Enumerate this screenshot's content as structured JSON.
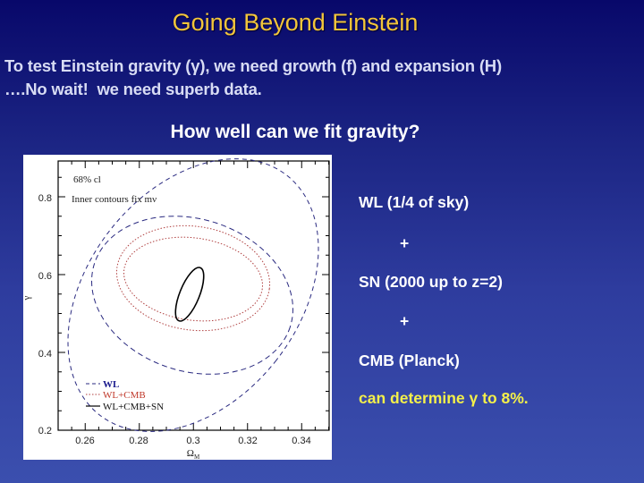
{
  "slide": {
    "title": "Going Beyond Einstein",
    "intro_lines": [
      "To test Einstein gravity (γ), we need growth (f) and expansion (H)",
      "….No wait!  we need superb data."
    ],
    "subtitle": "How well can we fit gravity?",
    "right_list": [
      {
        "text": "WL (1/4 of sky)",
        "kind": "item"
      },
      {
        "text": "+",
        "kind": "plus"
      },
      {
        "text": "SN (2000 up to z=2)",
        "kind": "item"
      },
      {
        "text": "+",
        "kind": "plus"
      },
      {
        "text": "CMB (Planck)",
        "kind": "item"
      },
      {
        "text": "can determine γ to 8%.",
        "kind": "highlight"
      }
    ],
    "colors": {
      "title": "#f2c53a",
      "intro": "#d8dcf4",
      "body": "#ffffff",
      "highlight": "#f4f04a",
      "bg_top": "#08086a",
      "bg_bottom": "#3b4fae"
    }
  },
  "chart_data": {
    "type": "scatter",
    "title": "",
    "annotations": [
      "68% cl",
      "Inner contours fix mν"
    ],
    "xlabel": "ΩM",
    "ylabel": "γ",
    "xlim": [
      0.25,
      0.35
    ],
    "ylim": [
      0.2,
      0.895
    ],
    "x_ticks": [
      "0.26",
      "0.28",
      "0.3",
      "0.32",
      "0.34"
    ],
    "y_ticks": [
      "0.2",
      "0.4",
      "0.6",
      "0.8"
    ],
    "grid": false,
    "legend_position": "lower-left",
    "legend": [
      {
        "label": "WL",
        "style": "dashed",
        "color": "#1a1a8c"
      },
      {
        "label": "WL+CMB",
        "style": "dotted",
        "color": "#c0392b"
      },
      {
        "label": "WL+CMB+SN",
        "style": "solid",
        "color": "#000000"
      }
    ],
    "series": [
      {
        "name": "WL (outer)",
        "style": "dashed",
        "shape": "ellipse",
        "center": [
          0.3,
          0.55
        ],
        "x_range": [
          0.252,
          0.348
        ],
        "y_range": [
          0.205,
          0.89
        ]
      },
      {
        "name": "WL (inner, fixed mν)",
        "style": "dashed",
        "shape": "ellipse",
        "center": [
          0.297,
          0.55
        ],
        "x_range": [
          0.262,
          0.33
        ],
        "y_range": [
          0.34,
          0.76
        ]
      },
      {
        "name": "WL+CMB (outer)",
        "style": "dotted",
        "shape": "ellipse",
        "center": [
          0.298,
          0.55
        ],
        "x_range": [
          0.27,
          0.326
        ],
        "y_range": [
          0.41,
          0.69
        ]
      },
      {
        "name": "WL+CMB (inner, fixed mν)",
        "style": "dotted",
        "shape": "ellipse",
        "center": [
          0.298,
          0.55
        ],
        "x_range": [
          0.272,
          0.323
        ],
        "y_range": [
          0.445,
          0.655
        ]
      },
      {
        "name": "WL+CMB+SN",
        "style": "solid",
        "shape": "ellipse",
        "center": [
          0.297,
          0.55
        ],
        "x_range": [
          0.291,
          0.304
        ],
        "y_range": [
          0.483,
          0.616
        ]
      }
    ]
  }
}
